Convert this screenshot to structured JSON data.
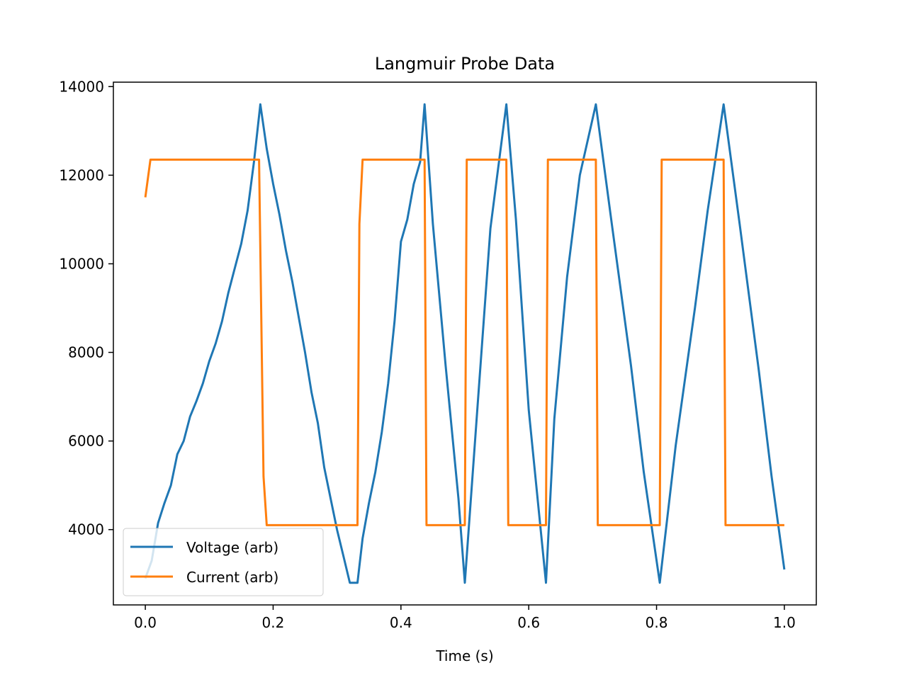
{
  "chart_data": {
    "type": "line",
    "title": "Langmuir Probe Data",
    "xlabel": "Time (s)",
    "ylabel": "",
    "xlim": [
      -0.05,
      1.05
    ],
    "ylim": [
      2300,
      14100
    ],
    "xticks": [
      0.0,
      0.2,
      0.4,
      0.6,
      0.8,
      1.0
    ],
    "xtick_labels": [
      "0.0",
      "0.2",
      "0.4",
      "0.6",
      "0.8",
      "1.0"
    ],
    "yticks": [
      4000,
      6000,
      8000,
      10000,
      12000,
      14000
    ],
    "ytick_labels": [
      "4000",
      "6000",
      "8000",
      "10000",
      "12000",
      "14000"
    ],
    "grid": false,
    "legend_position": "lower-left",
    "series": [
      {
        "name": "Voltage (arb)",
        "color": "#1f77b4",
        "x": [
          0.0,
          0.01,
          0.02,
          0.03,
          0.04,
          0.05,
          0.06,
          0.07,
          0.08,
          0.09,
          0.1,
          0.11,
          0.12,
          0.13,
          0.14,
          0.15,
          0.16,
          0.17,
          0.18,
          0.19,
          0.2,
          0.21,
          0.22,
          0.23,
          0.24,
          0.25,
          0.26,
          0.27,
          0.28,
          0.29,
          0.3,
          0.31,
          0.32,
          0.332,
          0.34,
          0.35,
          0.36,
          0.37,
          0.38,
          0.39,
          0.4,
          0.41,
          0.42,
          0.43,
          0.437,
          0.45,
          0.47,
          0.49,
          0.5,
          0.52,
          0.54,
          0.565,
          0.58,
          0.6,
          0.627,
          0.64,
          0.66,
          0.68,
          0.705,
          0.73,
          0.76,
          0.78,
          0.805,
          0.83,
          0.86,
          0.88,
          0.905,
          0.93,
          0.96,
          0.98,
          1.0
        ],
        "values": [
          2900,
          3300,
          4150,
          4600,
          5000,
          5700,
          6000,
          6550,
          6900,
          7300,
          7800,
          8200,
          8700,
          9350,
          9900,
          10450,
          11200,
          12300,
          13600,
          12600,
          11800,
          11100,
          10300,
          9600,
          8800,
          8000,
          7100,
          6400,
          5400,
          4700,
          4000,
          3400,
          2800,
          2800,
          3800,
          4600,
          5300,
          6200,
          7300,
          8700,
          10500,
          11000,
          11800,
          12300,
          13600,
          10900,
          7700,
          4700,
          2800,
          6800,
          10800,
          13600,
          11000,
          6700,
          2800,
          6500,
          9700,
          12000,
          13600,
          10900,
          7700,
          5300,
          2800,
          5900,
          9000,
          11200,
          13600,
          10900,
          7600,
          5200,
          3100
        ]
      },
      {
        "name": "Current (arb)",
        "color": "#ff7f0e",
        "x": [
          0.0,
          0.008,
          0.03,
          0.06,
          0.1,
          0.14,
          0.178,
          0.185,
          0.19,
          0.22,
          0.26,
          0.3,
          0.332,
          0.335,
          0.34,
          0.37,
          0.4,
          0.437,
          0.44,
          0.47,
          0.5,
          0.503,
          0.53,
          0.565,
          0.568,
          0.6,
          0.627,
          0.63,
          0.66,
          0.705,
          0.708,
          0.75,
          0.805,
          0.808,
          0.85,
          0.905,
          0.908,
          0.95,
          1.0
        ],
        "values": [
          11500,
          12350,
          12350,
          12350,
          12350,
          12350,
          12350,
          5200,
          4100,
          4100,
          4100,
          4100,
          4100,
          10900,
          12350,
          12350,
          12350,
          12350,
          4100,
          4100,
          4100,
          12350,
          12350,
          12350,
          4100,
          4100,
          4100,
          12350,
          12350,
          12350,
          4100,
          4100,
          4100,
          12350,
          12350,
          12350,
          4100,
          4100,
          4100
        ]
      }
    ]
  }
}
